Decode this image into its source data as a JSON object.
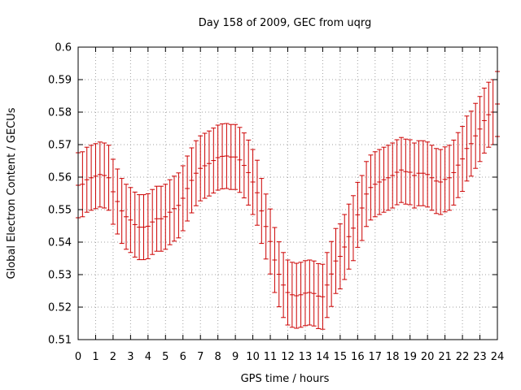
{
  "chart_data": {
    "type": "scatter",
    "style": "errorbars",
    "title": "Day 158 of 2009, GEC from uqrg",
    "xlabel": "GPS time / hours",
    "ylabel": "Global Electron Content / GECUs",
    "xlim": [
      0,
      24
    ],
    "ylim": [
      0.51,
      0.6
    ],
    "xticks": [
      0,
      1,
      2,
      3,
      4,
      5,
      6,
      7,
      8,
      9,
      10,
      11,
      12,
      13,
      14,
      15,
      16,
      17,
      18,
      19,
      20,
      21,
      22,
      23,
      24
    ],
    "yticks": [
      0.51,
      0.52,
      0.53,
      0.54,
      0.55,
      0.56,
      0.57,
      0.58,
      0.59,
      0.6
    ],
    "ytick_labels": [
      "0.51",
      "0.52",
      "0.53",
      "0.54",
      "0.55",
      "0.56",
      "0.57",
      "0.58",
      "0.59",
      "0.6"
    ],
    "grid": true,
    "error": 0.01,
    "series_color": "#cc0000",
    "x": [
      0,
      0.25,
      0.5,
      0.75,
      1,
      1.25,
      1.5,
      1.75,
      2,
      2.25,
      2.5,
      2.75,
      3,
      3.25,
      3.5,
      3.75,
      4,
      4.25,
      4.5,
      4.75,
      5,
      5.25,
      5.5,
      5.75,
      6,
      6.25,
      6.5,
      6.75,
      7,
      7.25,
      7.5,
      7.75,
      8,
      8.25,
      8.5,
      8.75,
      9,
      9.25,
      9.5,
      9.75,
      10,
      10.25,
      10.5,
      10.75,
      11,
      11.25,
      11.5,
      11.75,
      12,
      12.25,
      12.5,
      12.75,
      13,
      13.25,
      13.5,
      13.75,
      14,
      14.25,
      14.5,
      14.75,
      15,
      15.25,
      15.5,
      15.75,
      16,
      16.25,
      16.5,
      16.75,
      17,
      17.25,
      17.5,
      17.75,
      18,
      18.25,
      18.5,
      18.75,
      19,
      19.25,
      19.5,
      19.75,
      20,
      20.25,
      20.5,
      20.75,
      21,
      21.25,
      21.5,
      21.75,
      22,
      22.25,
      22.5,
      22.75,
      23,
      23.25,
      23.5,
      23.75,
      24
    ],
    "y": [
      0.5575,
      0.5578,
      0.5592,
      0.5598,
      0.5603,
      0.5608,
      0.5605,
      0.5598,
      0.5555,
      0.5525,
      0.5496,
      0.5478,
      0.5468,
      0.5454,
      0.5446,
      0.5446,
      0.5449,
      0.5462,
      0.5472,
      0.5472,
      0.5478,
      0.5492,
      0.5503,
      0.5513,
      0.5535,
      0.5565,
      0.559,
      0.5612,
      0.5627,
      0.5635,
      0.5642,
      0.5651,
      0.566,
      0.5664,
      0.5665,
      0.5662,
      0.5662,
      0.5653,
      0.5636,
      0.5614,
      0.5585,
      0.5552,
      0.5496,
      0.5448,
      0.5402,
      0.5345,
      0.5301,
      0.5268,
      0.5245,
      0.5238,
      0.5235,
      0.5238,
      0.5243,
      0.5245,
      0.5242,
      0.5234,
      0.5232,
      0.5268,
      0.5302,
      0.5342,
      0.5356,
      0.5385,
      0.5417,
      0.5443,
      0.5484,
      0.5505,
      0.5548,
      0.5568,
      0.5578,
      0.5585,
      0.5592,
      0.5598,
      0.5605,
      0.5615,
      0.5622,
      0.5617,
      0.5615,
      0.5605,
      0.5612,
      0.5612,
      0.5608,
      0.5598,
      0.5588,
      0.5585,
      0.5593,
      0.5598,
      0.5614,
      0.5637,
      0.5656,
      0.5688,
      0.5703,
      0.5727,
      0.5748,
      0.5774,
      0.5792,
      0.58,
      0.5825
    ]
  }
}
